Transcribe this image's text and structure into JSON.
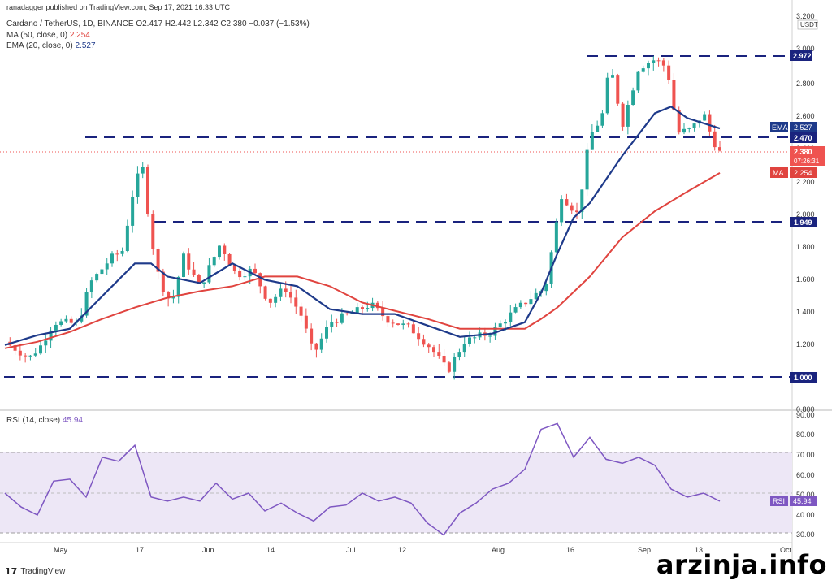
{
  "published": "ranadagger published on TradingView.com, Sep 17, 2021 16:33 UTC",
  "symbol_line": {
    "pair": "Cardano / TetherUS, 1D, BINANCE",
    "ohlc": "O2.417  H2.442  L2.342  C2.380  −0.037 (−1.53%)"
  },
  "ma_line": {
    "label": "MA (50, close, 0)",
    "value": "2.254"
  },
  "ema_line": {
    "label": "EMA (20, close, 0)",
    "value": "2.527"
  },
  "rsi_line": {
    "label": "RSI (14, close)",
    "value": "45.94"
  },
  "currency": "USDT",
  "price_axis": [
    "3.200",
    "3.000",
    "2.800",
    "2.600",
    "2.400",
    "2.200",
    "2.000",
    "1.800",
    "1.600",
    "1.400",
    "1.200",
    "1.000",
    "0.800"
  ],
  "rsi_axis": [
    "90.00",
    "80.00",
    "70.00",
    "60.00",
    "50.00",
    "40.00",
    "30.00"
  ],
  "time_axis": [
    "May",
    "17",
    "Jun",
    "14",
    "Jul",
    "12",
    "Aug",
    "16",
    "Sep",
    "13",
    "Oct"
  ],
  "badges": {
    "level_2972": "2.972",
    "ema_label": "EMA",
    "ema_value": "2.527",
    "level_2470": "2.470",
    "price": "2.380",
    "countdown": "07:26:31",
    "ma_label": "MA",
    "ma_value": "2.254",
    "level_1949": "1.949",
    "level_1000": "1.000",
    "rsi_label": "RSI",
    "rsi_value": "45.94"
  },
  "watermark": "arzinja.info",
  "tv_logo": "TradingView",
  "colors": {
    "up": "#26a69a",
    "down": "#ef5350",
    "ma": "#e0443f",
    "ema": "#1e3a8a",
    "rsi": "#7e57c2",
    "rsi_band": "#ede7f6",
    "level": "#1a237e"
  },
  "chart_data": {
    "type": "line",
    "series": [
      {
        "name": "MA (50, close, 0)",
        "x": [
          0,
          40,
          80,
          120,
          160,
          200,
          240,
          280,
          320,
          360,
          400,
          440,
          480,
          520,
          560,
          600,
          640,
          660,
          680,
          720,
          760,
          800,
          840,
          880
        ],
        "y": [
          1.18,
          1.22,
          1.28,
          1.36,
          1.43,
          1.49,
          1.53,
          1.56,
          1.62,
          1.62,
          1.56,
          1.46,
          1.41,
          1.36,
          1.3,
          1.3,
          1.3,
          1.36,
          1.43,
          1.62,
          1.86,
          2.02,
          2.14,
          2.254
        ]
      },
      {
        "name": "EMA (20, close, 0)",
        "x": [
          0,
          40,
          80,
          120,
          160,
          180,
          200,
          240,
          280,
          320,
          360,
          400,
          440,
          480,
          520,
          560,
          600,
          640,
          660,
          680,
          700,
          720,
          760,
          800,
          820,
          840,
          880
        ],
        "y": [
          1.2,
          1.26,
          1.3,
          1.5,
          1.7,
          1.7,
          1.62,
          1.58,
          1.7,
          1.6,
          1.56,
          1.42,
          1.39,
          1.39,
          1.32,
          1.25,
          1.27,
          1.34,
          1.52,
          1.76,
          1.98,
          2.07,
          2.36,
          2.62,
          2.66,
          2.59,
          2.527
        ]
      },
      {
        "name": "RSI (14, close)",
        "x": [
          0,
          20,
          40,
          60,
          80,
          100,
          120,
          140,
          160,
          180,
          200,
          220,
          240,
          260,
          280,
          300,
          320,
          340,
          360,
          380,
          400,
          420,
          440,
          460,
          480,
          500,
          520,
          540,
          560,
          580,
          600,
          620,
          640,
          660,
          680,
          700,
          720,
          740,
          760,
          780,
          800,
          820,
          840,
          860,
          880
        ],
        "y": [
          50,
          43,
          39,
          56,
          57,
          48,
          68,
          66,
          74,
          48,
          46,
          48,
          46,
          55,
          47,
          50,
          41,
          45,
          40,
          36,
          43,
          44,
          50,
          46,
          48,
          45,
          35,
          29,
          40,
          45,
          52,
          55,
          62,
          82,
          85,
          68,
          78,
          67,
          65,
          68,
          64,
          52,
          48,
          50,
          45.94
        ]
      }
    ],
    "levels": [
      2.972,
      2.47,
      1.949,
      1.0
    ],
    "ylim": [
      0.8,
      3.2
    ],
    "rsi_ylim": [
      30,
      90
    ],
    "last_price": 2.38
  }
}
